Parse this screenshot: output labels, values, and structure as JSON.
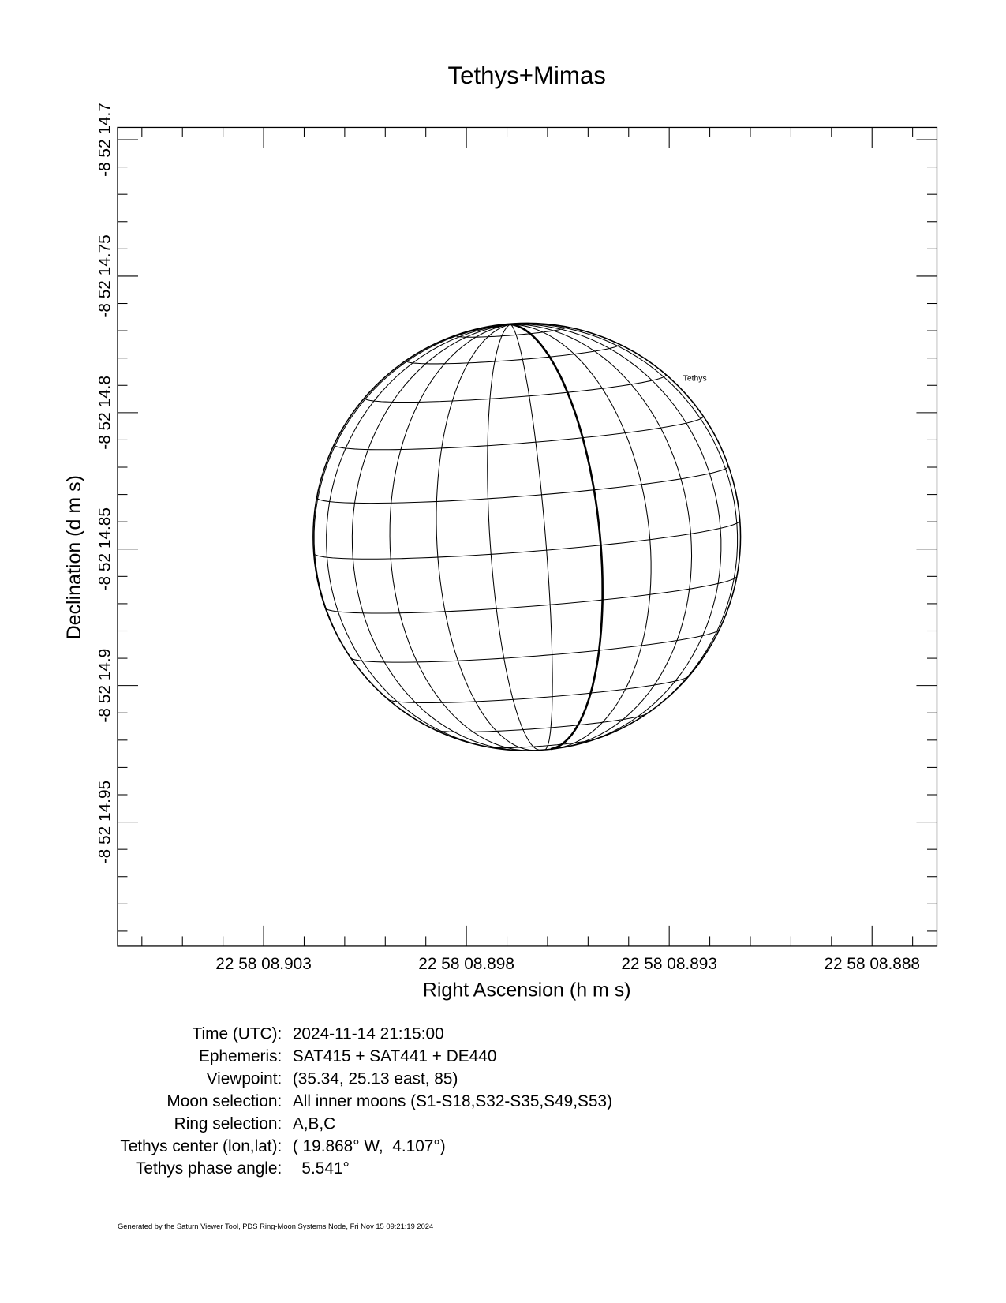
{
  "chart_data": {
    "type": "globe-view",
    "title": "Tethys+Mimas",
    "x_label": "Right Ascension (h m s)",
    "y_label": "Declination (d m s)",
    "xlim": [
      8.9066,
      8.8864
    ],
    "xticks": [
      {
        "value": 8.903,
        "label": "22 58 08.903"
      },
      {
        "value": 8.898,
        "label": "22 58 08.898"
      },
      {
        "value": 8.893,
        "label": "22 58 08.893"
      },
      {
        "value": 8.888,
        "label": "22 58 08.888"
      }
    ],
    "ylim": [
      14.9955,
      14.6955
    ],
    "yticks": [
      {
        "value": 14.7,
        "label": "-8 52 14.7"
      },
      {
        "value": 14.75,
        "label": "-8 52 14.75"
      },
      {
        "value": 14.8,
        "label": "-8 52 14.8"
      },
      {
        "value": 14.85,
        "label": "-8 52 14.85"
      },
      {
        "value": 14.9,
        "label": "-8 52 14.9"
      },
      {
        "value": 14.95,
        "label": "-8 52 14.95"
      }
    ],
    "annotations": [
      "Tethys"
    ]
  },
  "info": [
    [
      "Time (UTC):",
      "2024-11-14 21:15:00"
    ],
    [
      "Ephemeris:",
      "SAT415 + SAT441 + DE440"
    ],
    [
      "Viewpoint:",
      "(35.34, 25.13 east, 85)"
    ],
    [
      "Moon selection:",
      "All inner moons (S1-S18,S32-S35,S49,S53)"
    ],
    [
      "Ring selection:",
      "A,B,C"
    ],
    [
      "Tethys center (lon,lat):",
      "( 19.868° W,  4.107°)"
    ],
    [
      "Tethys phase angle:",
      "  5.541°"
    ]
  ],
  "footer": "Generated by the Saturn Viewer Tool, PDS Ring-Moon Systems Node, Fri Nov 15 09:21:19 2024"
}
